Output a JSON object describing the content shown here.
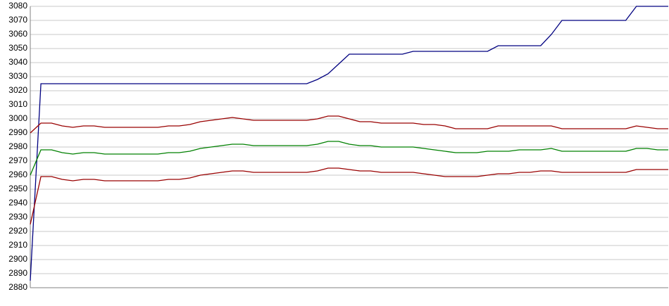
{
  "chart_data": {
    "type": "line",
    "categories": [
      null,
      null,
      null,
      null,
      null,
      null,
      null,
      null,
      null,
      null,
      null,
      null,
      null,
      null,
      null,
      null,
      null,
      null,
      null,
      null,
      null,
      null,
      null,
      null,
      null,
      null,
      null,
      null,
      null,
      null,
      null,
      null,
      null,
      null,
      null,
      null,
      null,
      null,
      null,
      null,
      null,
      null,
      null,
      null,
      null,
      null,
      null,
      null,
      null,
      null,
      null,
      null,
      null,
      null,
      null,
      null,
      null,
      null,
      null,
      null,
      null
    ],
    "series": [
      {
        "color": "#000080",
        "values": [
          2885,
          3025,
          3025,
          3025,
          3025,
          3025,
          3025,
          3025,
          3025,
          3025,
          3025,
          3025,
          3025,
          3025,
          3025,
          3025,
          3025,
          3025,
          3025,
          3025,
          3025,
          3025,
          3025,
          3025,
          3025,
          3025,
          3025,
          3028,
          3032,
          3039,
          3046,
          3046,
          3046,
          3046,
          3046,
          3046,
          3048,
          3048,
          3048,
          3048,
          3048,
          3048,
          3048,
          3048,
          3052,
          3052,
          3052,
          3052,
          3052,
          3060,
          3070,
          3070,
          3070,
          3070,
          3070,
          3070,
          3070,
          3080,
          3080,
          3080,
          3080
        ]
      },
      {
        "color": "#990000",
        "values": [
          2990,
          2997,
          2997,
          2995,
          2994,
          2995,
          2995,
          2994,
          2994,
          2994,
          2994,
          2994,
          2994,
          2995,
          2995,
          2996,
          2998,
          2999,
          3000,
          3001,
          3000,
          2999,
          2999,
          2999,
          2999,
          2999,
          2999,
          3000,
          3002,
          3002,
          3000,
          2998,
          2998,
          2997,
          2997,
          2997,
          2997,
          2996,
          2996,
          2995,
          2993,
          2993,
          2993,
          2993,
          2995,
          2995,
          2995,
          2995,
          2995,
          2995,
          2993,
          2993,
          2993,
          2993,
          2993,
          2993,
          2993,
          2995,
          2994,
          2993,
          2993
        ]
      },
      {
        "color": "#008000",
        "values": [
          2960,
          2978,
          2978,
          2976,
          2975,
          2976,
          2976,
          2975,
          2975,
          2975,
          2975,
          2975,
          2975,
          2976,
          2976,
          2977,
          2979,
          2980,
          2981,
          2982,
          2982,
          2981,
          2981,
          2981,
          2981,
          2981,
          2981,
          2982,
          2984,
          2984,
          2982,
          2981,
          2981,
          2980,
          2980,
          2980,
          2980,
          2979,
          2978,
          2977,
          2976,
          2976,
          2976,
          2977,
          2977,
          2977,
          2978,
          2978,
          2978,
          2979,
          2977,
          2977,
          2977,
          2977,
          2977,
          2977,
          2977,
          2979,
          2979,
          2978,
          2978
        ]
      },
      {
        "color": "#990000",
        "values": [
          2925,
          2959,
          2959,
          2957,
          2956,
          2957,
          2957,
          2956,
          2956,
          2956,
          2956,
          2956,
          2956,
          2957,
          2957,
          2958,
          2960,
          2961,
          2962,
          2963,
          2963,
          2962,
          2962,
          2962,
          2962,
          2962,
          2962,
          2963,
          2965,
          2965,
          2964,
          2963,
          2963,
          2962,
          2962,
          2962,
          2962,
          2961,
          2960,
          2959,
          2959,
          2959,
          2959,
          2960,
          2961,
          2961,
          2962,
          2962,
          2963,
          2963,
          2962,
          2962,
          2962,
          2962,
          2962,
          2962,
          2962,
          2964,
          2964,
          2964,
          2964
        ]
      }
    ],
    "ylim": [
      2880,
      3080
    ],
    "yticks": [
      2880,
      2890,
      2900,
      2910,
      2920,
      2930,
      2940,
      2950,
      2960,
      2970,
      2980,
      2990,
      3000,
      3010,
      3020,
      3030,
      3040,
      3050,
      3060,
      3070,
      3080
    ],
    "grid": true
  }
}
